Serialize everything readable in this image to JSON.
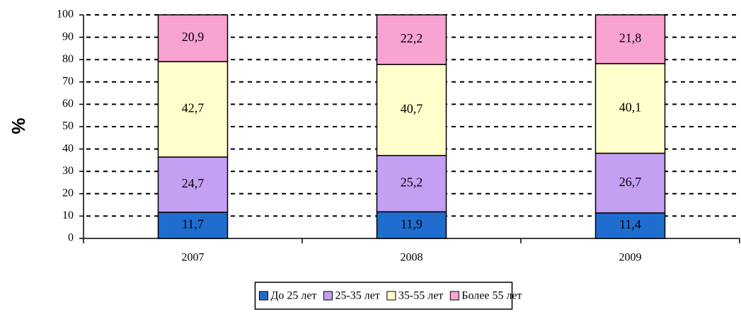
{
  "chart_data": {
    "type": "stacked_bar",
    "y_label": "%",
    "categories": [
      "2007",
      "2008",
      "2009"
    ],
    "series": [
      {
        "name": "До 25 лет",
        "color": "#1f6dcf",
        "values": [
          11.7,
          11.9,
          11.4
        ],
        "value_labels": [
          "11,7",
          "11,9",
          "11,4"
        ]
      },
      {
        "name": "25-35 лет",
        "color": "#c3a0f2",
        "values": [
          24.7,
          25.2,
          26.7
        ],
        "value_labels": [
          "24,7",
          "25,2",
          "26,7"
        ]
      },
      {
        "name": "35-55 лет",
        "color": "#ffffcc",
        "values": [
          42.7,
          40.7,
          40.1
        ],
        "value_labels": [
          "42,7",
          "40,7",
          "40,1"
        ]
      },
      {
        "name": "Более 55 лет",
        "color": "#f9a3d3",
        "values": [
          20.9,
          22.2,
          21.8
        ],
        "value_labels": [
          "20,9",
          "22,2",
          "21,8"
        ]
      }
    ],
    "ylim": [
      0,
      100
    ],
    "yticks": [
      0,
      10,
      20,
      30,
      40,
      50,
      60,
      70,
      80,
      90,
      100
    ],
    "grid": true
  }
}
